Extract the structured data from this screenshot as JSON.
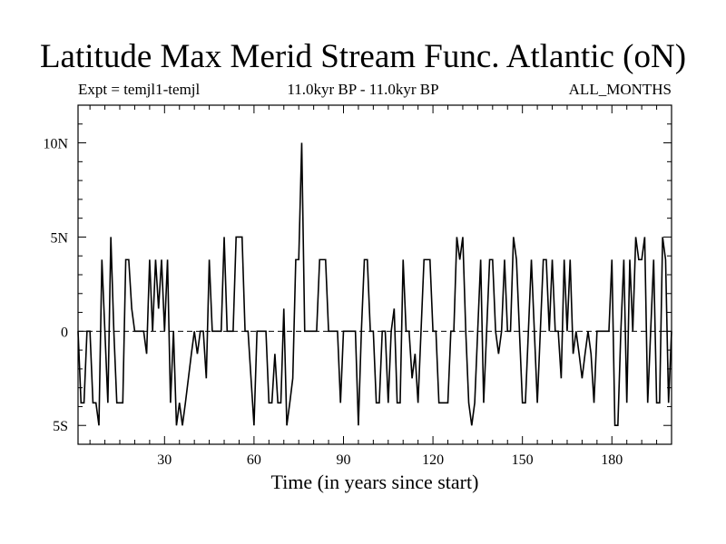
{
  "chart_data": {
    "type": "line",
    "title": "Latitude Max Merid Stream Func. Atlantic (oN)",
    "subtitle_left": "Expt = temjl1-temjl",
    "subtitle_center": "11.0kyr BP - 11.0kyr BP",
    "subtitle_right": "ALL_MONTHS",
    "xlabel": "Time (in years since start)",
    "ylabel": "",
    "xlim": [
      1,
      200
    ],
    "ylim": [
      -6.0,
      12.0
    ],
    "x_ticks": [
      30,
      60,
      90,
      120,
      150,
      180
    ],
    "x_tick_labels": [
      "30",
      "60",
      "90",
      "120",
      "150",
      "180"
    ],
    "y_ticks": [
      -5,
      0,
      5,
      10
    ],
    "y_tick_labels": [
      "5S",
      "0",
      "5N",
      "10N"
    ],
    "zero_line": true,
    "grid": false,
    "series": [
      {
        "values": [
          0,
          -3.8,
          -3.8,
          0,
          0,
          -3.8,
          -3.8,
          -5.0,
          3.8,
          0,
          -3.8,
          5.0,
          0,
          -3.8,
          -3.8,
          -3.8,
          3.8,
          3.8,
          1.2,
          0,
          0,
          0,
          0,
          -1.2,
          3.8,
          0,
          3.8,
          1.2,
          3.8,
          0,
          3.8,
          -3.8,
          0,
          -5.0,
          -3.8,
          -5.0,
          -3.8,
          -2.5,
          -1.2,
          0,
          -1.2,
          0,
          0,
          -2.5,
          3.8,
          0,
          0,
          0,
          0,
          5.0,
          0,
          0,
          0,
          5.0,
          5.0,
          5.0,
          0,
          0,
          -2.5,
          -5.0,
          0,
          0,
          0,
          0,
          -3.8,
          -3.8,
          -1.2,
          -3.8,
          -3.8,
          1.2,
          -5.0,
          -3.8,
          -2.5,
          3.8,
          3.8,
          10.0,
          0,
          0,
          0,
          0,
          0,
          3.8,
          3.8,
          3.8,
          0,
          0,
          0,
          0,
          -3.8,
          0,
          0,
          0,
          0,
          0,
          -5.0,
          0,
          3.8,
          3.8,
          0,
          0,
          -3.8,
          -3.8,
          0,
          0,
          -3.8,
          0,
          1.2,
          -3.8,
          -3.8,
          3.8,
          0,
          0,
          -2.5,
          -1.2,
          -3.8,
          0,
          3.8,
          3.8,
          3.8,
          0,
          0,
          -3.8,
          -3.8,
          -3.8,
          -3.8,
          0,
          0,
          5.0,
          3.8,
          5.0,
          0,
          -3.8,
          -5.0,
          -3.8,
          0,
          3.8,
          -3.8,
          0,
          3.8,
          3.8,
          0,
          -1.2,
          0,
          3.8,
          0,
          0,
          5.0,
          3.8,
          0,
          -3.8,
          -3.8,
          0,
          3.8,
          0,
          -3.8,
          0,
          3.8,
          3.8,
          0,
          3.8,
          0,
          0,
          -2.5,
          3.8,
          0,
          3.8,
          -1.2,
          0,
          -1.2,
          -2.5,
          -1.2,
          0,
          -1.2,
          -3.8,
          0,
          0,
          0,
          0,
          0,
          3.8,
          -5.0,
          -5.0,
          0,
          3.8,
          -3.8,
          3.8,
          0,
          5.0,
          3.8,
          3.8,
          5.0,
          -3.8,
          0,
          3.8,
          -3.8,
          -3.8,
          5.0,
          3.8,
          -3.8,
          0
        ]
      }
    ]
  }
}
